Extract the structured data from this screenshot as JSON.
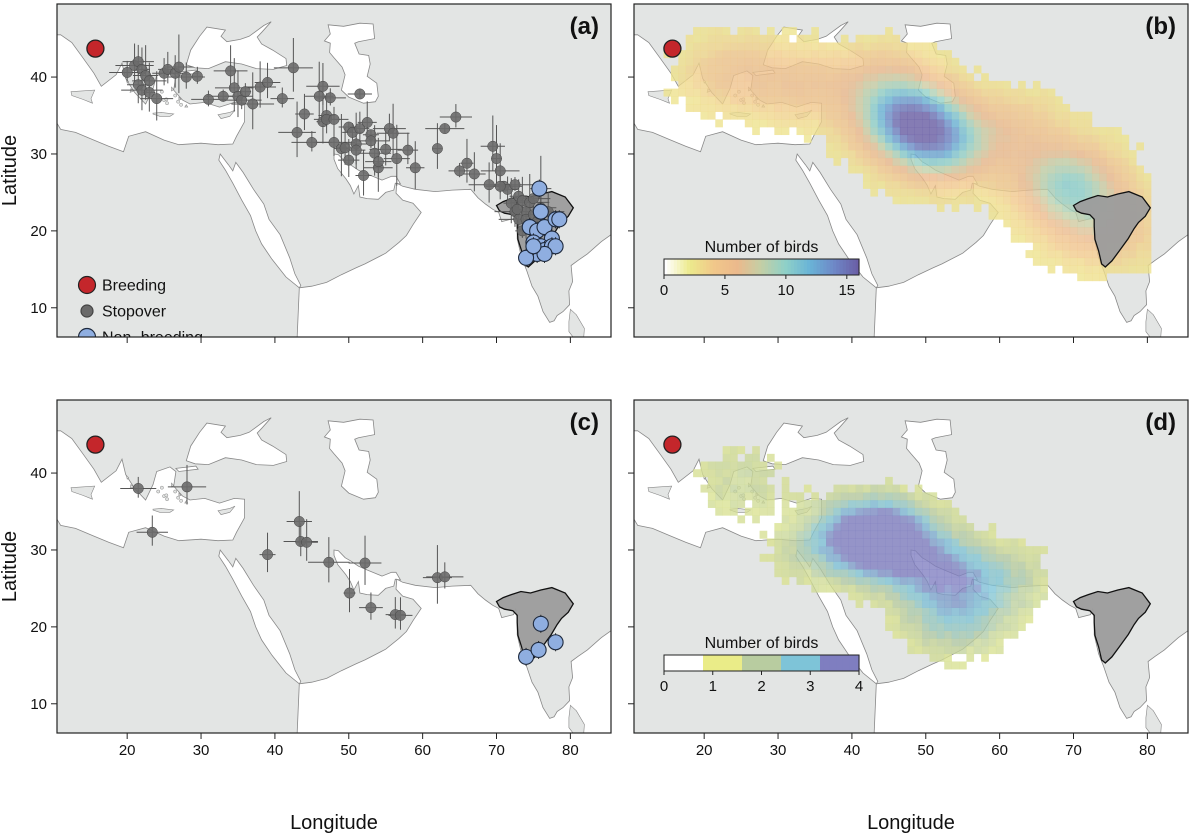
{
  "figure": {
    "xlabel": "Longitude",
    "ylabel": "Latitude",
    "x_ticks": [
      20,
      30,
      40,
      50,
      60,
      70,
      80
    ],
    "y_ticks": [
      10,
      20,
      30,
      40
    ],
    "xlim": [
      10.5,
      85.5
    ],
    "ylim": [
      6.2,
      49.5
    ],
    "colors": {
      "sea": "#ffffff",
      "land": "#e3e5e4",
      "coast": "#888888",
      "breeding": "#c4262b",
      "stopover": "#6a6a6a",
      "nonbreeding": "#8faee0",
      "range_fill": "#9c9c9c"
    }
  },
  "panels": [
    {
      "id": "a",
      "label": "(a)"
    },
    {
      "id": "b",
      "label": "(b)"
    },
    {
      "id": "c",
      "label": "(c)"
    },
    {
      "id": "d",
      "label": "(d)"
    }
  ],
  "legend_points": {
    "breeding": "Breeding",
    "stopover": "Stopover",
    "nonbreeding": "Non−breeding"
  },
  "colorbar_b": {
    "title": "Number of birds",
    "ticks": [
      "0",
      "5",
      "10",
      "15"
    ],
    "max": 16,
    "colors": [
      "#ffffff",
      "#ecea8c",
      "#f1c88a",
      "#ebb98c",
      "#c3cfa6",
      "#8fd0c8",
      "#6ab4d6",
      "#6e89c8",
      "#6a5fa6"
    ]
  },
  "colorbar_d": {
    "title": "Number of birds",
    "ticks": [
      "0",
      "1",
      "2",
      "3",
      "4"
    ],
    "max": 4,
    "colors": [
      "#ffffff",
      "#eaec88",
      "#b8cca0",
      "#7ec4d8",
      "#7f7ec0"
    ]
  },
  "chart_data": [
    {
      "type": "scatter",
      "panel": "(a)",
      "xlabel": "",
      "ylabel": "Latitude",
      "xlim": [
        10.5,
        85.5
      ],
      "ylim": [
        6.2,
        49.5
      ],
      "series": [
        {
          "name": "Breeding",
          "points": [
            [
              15.7,
              43.7
            ]
          ]
        },
        {
          "name": "Stopover",
          "points": [
            [
              20,
              40.6
            ],
            [
              21,
              41.5
            ],
            [
              21.5,
              42
            ],
            [
              22,
              41
            ],
            [
              22.5,
              40.2
            ],
            [
              23,
              39.5
            ],
            [
              21.5,
              39
            ],
            [
              22,
              38.3
            ],
            [
              23,
              38
            ],
            [
              24,
              37.2
            ],
            [
              25,
              40.5
            ],
            [
              25.5,
              41
            ],
            [
              26.5,
              40.5
            ],
            [
              27,
              41.3
            ],
            [
              28,
              40
            ],
            [
              29.5,
              40.1
            ],
            [
              31,
              37.1
            ],
            [
              33,
              37.5
            ],
            [
              34,
              40.8
            ],
            [
              34.5,
              38.6
            ],
            [
              35,
              37.5
            ],
            [
              35.5,
              37
            ],
            [
              36,
              38.1
            ],
            [
              37,
              36.5
            ],
            [
              38,
              38.7
            ],
            [
              39,
              39.3
            ],
            [
              41,
              37.2
            ],
            [
              42.5,
              41.2
            ],
            [
              43,
              32.8
            ],
            [
              44,
              35.2
            ],
            [
              45,
              31.5
            ],
            [
              46,
              37.5
            ],
            [
              46.5,
              38.8
            ],
            [
              46.5,
              34.2
            ],
            [
              47,
              35
            ],
            [
              47.5,
              37.3
            ],
            [
              47,
              34.5
            ],
            [
              48,
              34.5
            ],
            [
              48,
              31.5
            ],
            [
              49,
              30.7
            ],
            [
              49.5,
              30.8
            ],
            [
              50,
              33.5
            ],
            [
              50,
              29.2
            ],
            [
              50.5,
              32.8
            ],
            [
              51,
              31.3
            ],
            [
              51,
              30.5
            ],
            [
              51.5,
              33.3
            ],
            [
              51.5,
              37.8
            ],
            [
              52,
              27.2
            ],
            [
              52.5,
              34.1
            ],
            [
              53,
              32.5
            ],
            [
              53,
              31.7
            ],
            [
              53.5,
              30.1
            ],
            [
              54,
              28.2
            ],
            [
              54,
              29
            ],
            [
              55,
              30.6
            ],
            [
              55.5,
              33.3
            ],
            [
              56,
              32.7
            ],
            [
              56.5,
              29.4
            ],
            [
              58,
              30.5
            ],
            [
              59,
              28.2
            ],
            [
              62,
              30.7
            ],
            [
              63,
              33.3
            ],
            [
              64.5,
              34.8
            ],
            [
              65,
              27.8
            ],
            [
              66,
              28.8
            ],
            [
              67,
              27.4
            ],
            [
              69,
              26
            ],
            [
              69.5,
              31
            ],
            [
              70,
              29.4
            ],
            [
              70.5,
              27.8
            ],
            [
              71,
              25.8
            ],
            [
              71.5,
              25.4
            ],
            [
              72,
              23.6
            ],
            [
              72.5,
              26
            ],
            [
              72.5,
              22.5
            ],
            [
              73,
              24.5
            ],
            [
              73,
              21.5
            ],
            [
              73.5,
              23.9
            ],
            [
              74,
              22.5
            ],
            [
              74,
              21.5
            ],
            [
              74.5,
              23.7
            ],
            [
              75,
              24.2
            ],
            [
              75,
              22.1
            ],
            [
              75.5,
              21.2
            ],
            [
              76,
              25.5
            ],
            [
              76,
              23
            ],
            [
              77,
              22.5
            ],
            [
              74.5,
              20.2
            ],
            [
              73.5,
              20
            ],
            [
              72.8,
              22.8
            ],
            [
              70.5,
              25.8
            ]
          ]
        },
        {
          "name": "Non-breeding",
          "points": [
            [
              75.8,
              25.5
            ],
            [
              76,
              22.5
            ],
            [
              74.5,
              20.5
            ],
            [
              75.5,
              20
            ],
            [
              76.5,
              20.5
            ],
            [
              78,
              21.5
            ],
            [
              78.5,
              21.5
            ],
            [
              77.5,
              19
            ],
            [
              75,
              18.5
            ],
            [
              76,
              18
            ],
            [
              76.5,
              17.5
            ],
            [
              77.5,
              18
            ],
            [
              78,
              18
            ],
            [
              75.5,
              17
            ],
            [
              74,
              16.5
            ],
            [
              76.5,
              17
            ],
            [
              75,
              18
            ]
          ]
        }
      ]
    },
    {
      "type": "heatmap",
      "panel": "(b)",
      "value_range": [
        0,
        16
      ],
      "hotspots": [
        {
          "lon": 24,
          "lat": 40.5,
          "peak": 3
        },
        {
          "lon": 33,
          "lat": 39,
          "peak": 3
        },
        {
          "lon": 44,
          "lat": 39,
          "peak": 4
        },
        {
          "lon": 48,
          "lat": 34.5,
          "peak": 13
        },
        {
          "lon": 52,
          "lat": 31,
          "peak": 9
        },
        {
          "lon": 62,
          "lat": 33,
          "peak": 3
        },
        {
          "lon": 69,
          "lat": 26.5,
          "peak": 8
        },
        {
          "lon": 72,
          "lat": 22,
          "peak": 4
        },
        {
          "lon": 75,
          "lat": 19.5,
          "peak": 2
        }
      ],
      "colorbar": {
        "title": "Number of birds",
        "ticks": [
          0,
          5,
          10,
          15
        ]
      }
    },
    {
      "type": "scatter",
      "panel": "(c)",
      "xlabel": "Longitude",
      "ylabel": "Latitude",
      "xlim": [
        10.5,
        85.5
      ],
      "ylim": [
        6.2,
        49.5
      ],
      "series": [
        {
          "name": "Breeding",
          "points": [
            [
              15.7,
              43.7
            ]
          ]
        },
        {
          "name": "Stopover",
          "points": [
            [
              21.5,
              38
            ],
            [
              28.1,
              38.2
            ],
            [
              23.4,
              32.3
            ],
            [
              39,
              29.4
            ],
            [
              43.3,
              33.7
            ],
            [
              43.5,
              31.1
            ],
            [
              44.3,
              31
            ],
            [
              47.3,
              28.4
            ],
            [
              50.1,
              24.4
            ],
            [
              52.2,
              28.3
            ],
            [
              53,
              22.5
            ],
            [
              56.3,
              21.6
            ],
            [
              57,
              21.5
            ],
            [
              62,
              26.4
            ],
            [
              63,
              26.5
            ]
          ]
        },
        {
          "name": "Non-breeding",
          "points": [
            [
              76,
              20.4
            ],
            [
              74,
              16.1
            ],
            [
              75.7,
              17
            ],
            [
              78,
              18
            ]
          ]
        }
      ]
    },
    {
      "type": "heatmap",
      "panel": "(d)",
      "value_range": [
        0,
        4
      ],
      "hotspots": [
        {
          "lon": 45,
          "lat": 31,
          "peak": 4
        },
        {
          "lon": 42,
          "lat": 32,
          "peak": 3.5
        },
        {
          "lon": 52,
          "lat": 27,
          "peak": 3
        },
        {
          "lon": 54,
          "lat": 21,
          "peak": 2
        },
        {
          "lon": 60,
          "lat": 26,
          "peak": 1.5
        },
        {
          "lon": 25,
          "lat": 39,
          "peak": 1
        },
        {
          "lon": 35,
          "lat": 30,
          "peak": 1
        }
      ],
      "colorbar": {
        "title": "Number of birds",
        "ticks": [
          0,
          1,
          2,
          3,
          4
        ]
      }
    }
  ]
}
